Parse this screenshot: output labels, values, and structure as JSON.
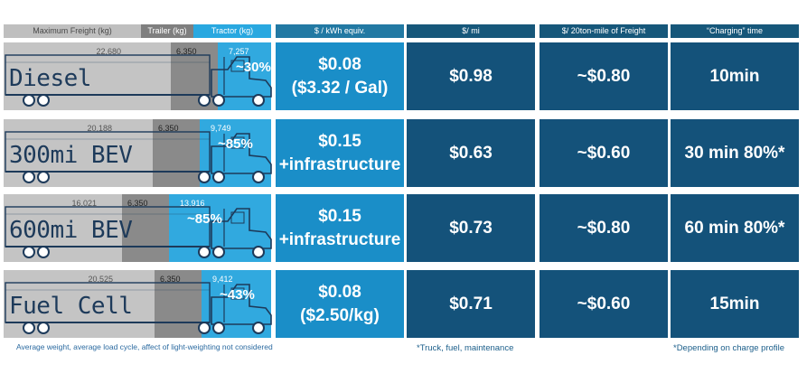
{
  "headers": {
    "max_freight": "Maximum Freight (kg)",
    "trailer": "Trailer (kg)",
    "tractor": "Tractor (kg)",
    "kwh": "$ / kWh equiv.",
    "per_mile": "$/ mi",
    "per_ton_mile": "$/ 20ton-mile of Freight",
    "charging": "“Charging” time"
  },
  "rows": [
    {
      "name": "Diesel",
      "freight": "22,680",
      "trailer": "6,350",
      "tractor": "7,257",
      "efficiency": "~30%",
      "kwh_line1": "$0.08",
      "kwh_line2": "($3.32 / Gal)",
      "per_mile": "$0.98",
      "per_ton_mile": "~$0.80",
      "charging": "10min",
      "weights": {
        "freight_kg": 22680,
        "trailer_kg": 6350,
        "tractor_kg": 7257
      }
    },
    {
      "name": "300mi BEV",
      "freight": "20,188",
      "trailer": "6,350",
      "tractor": "9,749",
      "efficiency": "~85%",
      "kwh_line1": "$0.15",
      "kwh_line2": "+infrastructure",
      "per_mile": "$0.63",
      "per_ton_mile": "~$0.60",
      "charging": "30 min 80%*",
      "weights": {
        "freight_kg": 20188,
        "trailer_kg": 6350,
        "tractor_kg": 9749
      }
    },
    {
      "name": "600mi BEV",
      "freight": "16,021",
      "trailer": "6,350",
      "tractor": "13,916",
      "efficiency": "~85%",
      "kwh_line1": "$0.15",
      "kwh_line2": "+infrastructure",
      "per_mile": "$0.73",
      "per_ton_mile": "~$0.80",
      "charging": "60 min 80%*",
      "weights": {
        "freight_kg": 16021,
        "trailer_kg": 6350,
        "tractor_kg": 13916
      }
    },
    {
      "name": "Fuel Cell",
      "freight": "20,525",
      "trailer": "6,350",
      "tractor": "9,412",
      "efficiency": "~43%",
      "kwh_line1": "$0.08",
      "kwh_line2": "($2.50/kg)",
      "per_mile": "$0.71",
      "per_ton_mile": "~$0.60",
      "charging": "15min",
      "weights": {
        "freight_kg": 20525,
        "trailer_kg": 6350,
        "tractor_kg": 9412
      }
    }
  ],
  "footnotes": {
    "weights": "Average weight, average load cycle, affect of light-weighting not considered",
    "per_mile": "*Truck, fuel, maintenance",
    "charging": "*Depending on charge profile"
  },
  "colors": {
    "freight": "#c4c4c4",
    "trailer": "#8a8a8a",
    "tractor": "#31a9df",
    "kwh_cell": "#1a8ec8",
    "dark_cell": "#14527a",
    "truck_ink": "#1d3a5a"
  }
}
